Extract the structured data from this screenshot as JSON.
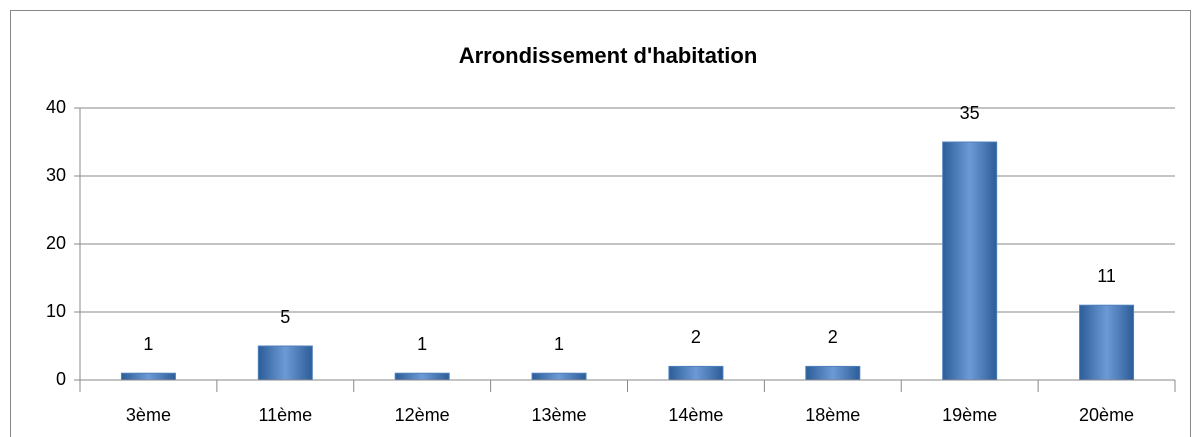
{
  "chart_data": {
    "type": "bar",
    "title": "Arrondissement d'habitation",
    "categories": [
      "3ème",
      "11ème",
      "12ème",
      "13ème",
      "14ème",
      "18ème",
      "19ème",
      "20ème"
    ],
    "values": [
      1,
      5,
      1,
      1,
      2,
      2,
      35,
      11
    ],
    "color": "#4f81bd",
    "ylim": [
      0,
      40
    ],
    "yticks": [
      0,
      10,
      20,
      30,
      40
    ],
    "grid": true
  }
}
